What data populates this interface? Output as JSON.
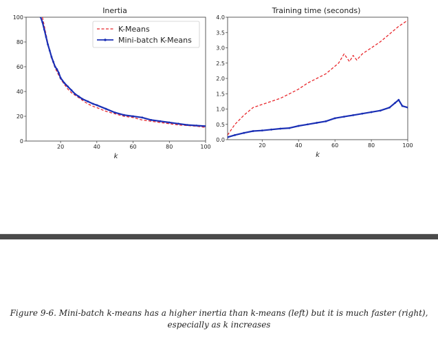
{
  "chart_data": [
    {
      "type": "line",
      "title": "Inertia",
      "xlabel": "k",
      "ylabel": "",
      "xlim": [
        1,
        100
      ],
      "ylim": [
        0,
        100
      ],
      "xticks": [
        "20",
        "40",
        "60",
        "80",
        "100"
      ],
      "yticks": [
        "0",
        "20",
        "40",
        "60",
        "80",
        "100"
      ],
      "legend": "top-right",
      "series": [
        {
          "name": "K-Means",
          "style": "dashed",
          "color": "#e8262b",
          "x": [
            10,
            11,
            12,
            13,
            14,
            15,
            16,
            17,
            18,
            19,
            20,
            22,
            24,
            26,
            28,
            30,
            32,
            35,
            38,
            40,
            45,
            50,
            55,
            60,
            65,
            70,
            75,
            80,
            85,
            90,
            95,
            100
          ],
          "y": [
            100,
            93,
            86,
            79,
            73,
            67,
            63,
            59,
            56,
            53,
            50,
            46,
            42,
            39,
            37,
            35,
            33,
            30,
            28,
            27,
            24,
            22,
            20,
            19,
            17,
            16,
            15,
            14,
            13,
            12.5,
            12,
            11
          ]
        },
        {
          "name": "Mini-batch K-Means",
          "style": "solid-markers",
          "color": "#1a2fb5",
          "x": [
            9,
            10,
            11,
            12,
            13,
            14,
            15,
            16,
            17,
            18,
            19,
            20,
            22,
            24,
            26,
            28,
            30,
            32,
            35,
            38,
            40,
            45,
            50,
            55,
            60,
            65,
            70,
            75,
            80,
            85,
            90,
            95,
            100
          ],
          "y": [
            100,
            96,
            90,
            84,
            78,
            73,
            68,
            64,
            60,
            58,
            55,
            51,
            47,
            44,
            41,
            38,
            36,
            34,
            32,
            30,
            29,
            26,
            23,
            21,
            20,
            19,
            17,
            16,
            15,
            14,
            13,
            12.5,
            12
          ]
        }
      ]
    },
    {
      "type": "line",
      "title": "Training time (seconds)",
      "xlabel": "k",
      "ylabel": "",
      "xlim": [
        1,
        100
      ],
      "ylim": [
        0,
        4
      ],
      "xticks": [
        "20",
        "40",
        "60",
        "80",
        "100"
      ],
      "yticks": [
        "0.0",
        "0.5",
        "1.0",
        "1.5",
        "2.0",
        "2.5",
        "3.0",
        "3.5",
        "4.0"
      ],
      "series": [
        {
          "name": "K-Means",
          "style": "dashed",
          "color": "#e8262b",
          "x": [
            1,
            5,
            10,
            15,
            20,
            25,
            30,
            35,
            40,
            45,
            50,
            55,
            60,
            62,
            65,
            68,
            70,
            72,
            75,
            80,
            85,
            90,
            95,
            100
          ],
          "y": [
            0.15,
            0.5,
            0.8,
            1.05,
            1.15,
            1.25,
            1.35,
            1.5,
            1.65,
            1.85,
            2.0,
            2.15,
            2.4,
            2.5,
            2.8,
            2.55,
            2.75,
            2.6,
            2.8,
            3.0,
            3.2,
            3.45,
            3.7,
            3.9
          ]
        },
        {
          "name": "Mini-batch K-Means",
          "style": "solid-markers",
          "color": "#1a2fb5",
          "x": [
            1,
            5,
            10,
            15,
            20,
            25,
            30,
            35,
            40,
            45,
            50,
            55,
            60,
            65,
            70,
            75,
            80,
            85,
            90,
            93,
            95,
            97,
            100
          ],
          "y": [
            0.08,
            0.15,
            0.22,
            0.28,
            0.3,
            0.33,
            0.36,
            0.38,
            0.45,
            0.5,
            0.55,
            0.6,
            0.7,
            0.75,
            0.8,
            0.85,
            0.9,
            0.95,
            1.05,
            1.2,
            1.3,
            1.1,
            1.05
          ]
        }
      ]
    }
  ],
  "caption": {
    "line1": "Figure 9-6. Mini-batch k-means has a higher inertia than k-means (left) but it is much faster (right),",
    "line2": "especially as k increases"
  }
}
